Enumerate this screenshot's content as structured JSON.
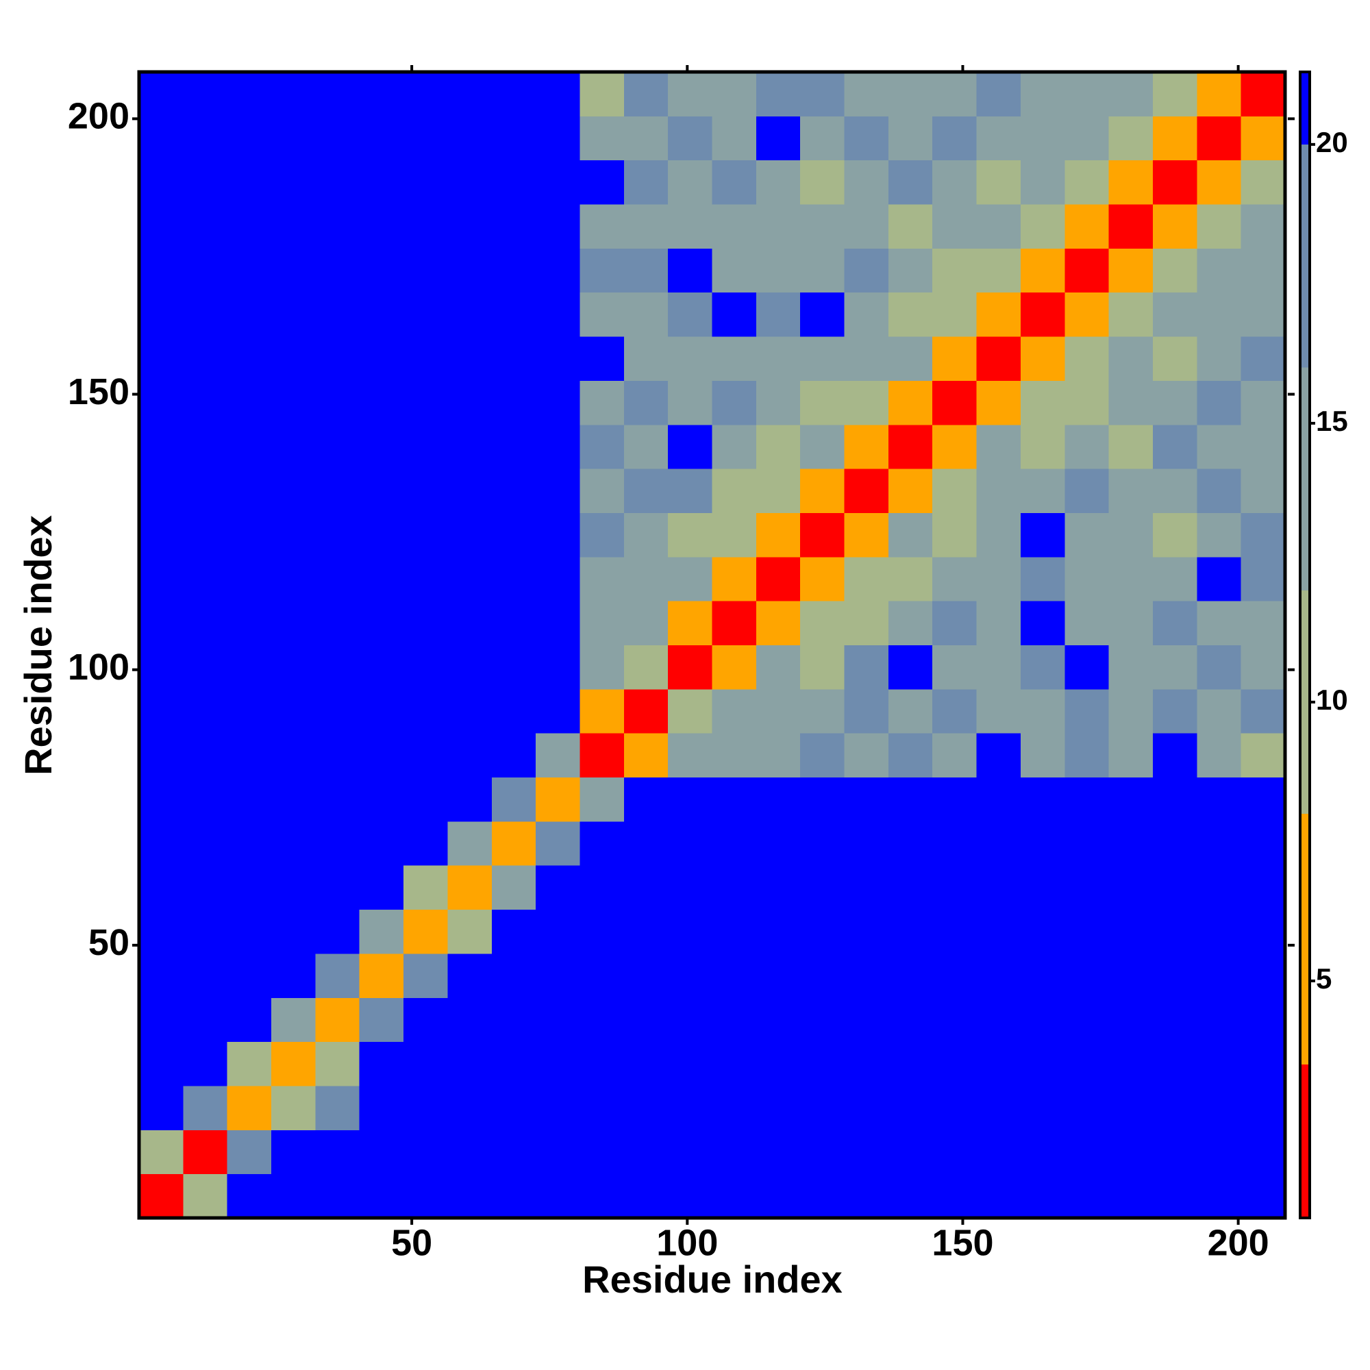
{
  "chart_data": {
    "type": "heatmap",
    "xlabel": "Residue index",
    "ylabel": "Residue index",
    "xlim": [
      0.5,
      208.5
    ],
    "ylim": [
      0.5,
      208.5
    ],
    "xticks": [
      50,
      100,
      150,
      200
    ],
    "yticks": [
      50,
      100,
      150,
      200
    ],
    "xbins": [
      0.5,
      8.5,
      16.5,
      24.5,
      32.5,
      40.5,
      48.5,
      56.5,
      64.5,
      72.5,
      80.5,
      88.5,
      96.5,
      104.5,
      112.5,
      120.5,
      128.5,
      136.5,
      144.5,
      152.5,
      160.5,
      168.5,
      176.5,
      184.5,
      192.5,
      200.5,
      208.5
    ],
    "ybins": [
      0.5,
      8.5,
      16.5,
      24.5,
      32.5,
      40.5,
      48.5,
      56.5,
      64.5,
      72.5,
      80.5,
      88.5,
      96.5,
      104.5,
      112.5,
      120.5,
      128.5,
      136.5,
      144.5,
      152.5,
      160.5,
      168.5,
      176.5,
      184.5,
      192.5,
      200.5,
      208.5
    ],
    "values": [
      [
        3,
        12,
        21,
        21,
        21,
        21,
        21,
        21,
        21,
        21,
        21,
        21,
        21,
        21,
        21,
        21,
        21,
        21,
        21,
        21,
        21,
        21,
        21,
        21,
        21,
        21
      ],
      [
        12,
        3,
        17,
        21,
        21,
        21,
        21,
        21,
        21,
        21,
        21,
        21,
        21,
        21,
        21,
        21,
        21,
        21,
        21,
        21,
        21,
        21,
        21,
        21,
        21,
        21
      ],
      [
        21,
        17,
        4,
        12,
        19,
        21,
        21,
        21,
        21,
        21,
        21,
        21,
        21,
        21,
        21,
        21,
        21,
        21,
        21,
        21,
        21,
        21,
        21,
        21,
        21,
        21
      ],
      [
        21,
        21,
        12,
        4,
        12,
        21,
        21,
        21,
        21,
        21,
        21,
        21,
        21,
        21,
        21,
        21,
        21,
        21,
        21,
        21,
        21,
        21,
        21,
        21,
        21,
        21
      ],
      [
        21,
        21,
        21,
        14,
        4,
        18,
        21,
        21,
        21,
        21,
        21,
        21,
        21,
        21,
        21,
        21,
        21,
        21,
        21,
        21,
        21,
        21,
        21,
        21,
        21,
        21
      ],
      [
        21,
        21,
        21,
        21,
        18,
        4,
        17,
        21,
        21,
        21,
        21,
        21,
        21,
        21,
        21,
        21,
        21,
        21,
        21,
        21,
        21,
        21,
        21,
        21,
        21,
        21
      ],
      [
        21,
        21,
        21,
        21,
        21,
        15,
        4,
        11,
        21,
        21,
        21,
        21,
        21,
        21,
        21,
        21,
        21,
        21,
        21,
        21,
        21,
        21,
        21,
        21,
        21,
        21
      ],
      [
        21,
        21,
        21,
        21,
        21,
        21,
        11,
        4,
        14,
        21,
        21,
        21,
        21,
        21,
        21,
        21,
        21,
        21,
        21,
        21,
        21,
        21,
        21,
        21,
        21,
        21
      ],
      [
        21,
        21,
        21,
        21,
        21,
        21,
        21,
        16,
        4,
        18,
        21,
        21,
        21,
        21,
        21,
        21,
        21,
        21,
        21,
        21,
        21,
        21,
        21,
        21,
        21,
        21
      ],
      [
        21,
        21,
        21,
        21,
        21,
        21,
        21,
        21,
        18,
        4,
        16,
        21,
        21,
        21,
        21,
        21,
        21,
        21,
        21,
        21,
        21,
        21,
        21,
        21,
        21,
        21
      ],
      [
        21,
        21,
        21,
        21,
        21,
        21,
        21,
        21,
        21,
        16,
        3,
        8,
        13,
        16,
        15,
        18,
        14,
        17,
        15,
        21,
        16,
        17,
        15,
        21,
        16,
        12
      ],
      [
        21,
        21,
        21,
        21,
        21,
        21,
        21,
        21,
        21,
        21,
        8,
        3,
        9,
        13,
        16,
        14,
        17,
        15,
        19,
        16,
        15,
        18,
        14,
        17,
        15,
        18
      ],
      [
        21,
        21,
        21,
        21,
        21,
        21,
        21,
        21,
        21,
        21,
        13,
        9,
        3,
        8,
        14,
        10,
        17,
        21,
        16,
        15,
        17,
        21,
        16,
        15,
        18,
        16
      ],
      [
        21,
        21,
        21,
        21,
        21,
        21,
        21,
        21,
        21,
        21,
        16,
        13,
        8,
        3,
        7,
        12,
        9,
        15,
        17,
        14,
        21,
        16,
        15,
        19,
        16,
        15
      ],
      [
        21,
        21,
        21,
        21,
        21,
        21,
        21,
        21,
        21,
        21,
        15,
        16,
        14,
        7,
        3,
        8,
        12,
        10,
        16,
        14,
        17,
        15,
        14,
        16,
        21,
        17
      ],
      [
        21,
        21,
        21,
        21,
        21,
        21,
        21,
        21,
        21,
        21,
        18,
        14,
        10,
        12,
        8,
        3,
        7,
        13,
        9,
        15,
        21,
        16,
        14,
        12,
        16,
        18
      ],
      [
        21,
        21,
        21,
        21,
        21,
        21,
        21,
        21,
        21,
        21,
        14,
        17,
        17,
        9,
        12,
        7,
        3,
        8,
        12,
        16,
        14,
        17,
        15,
        16,
        17,
        15
      ],
      [
        21,
        21,
        21,
        21,
        21,
        21,
        21,
        21,
        21,
        21,
        17,
        15,
        21,
        15,
        10,
        13,
        8,
        3,
        7,
        13,
        11,
        15,
        12,
        17,
        15,
        14
      ],
      [
        21,
        21,
        21,
        21,
        21,
        21,
        21,
        21,
        21,
        21,
        15,
        19,
        16,
        17,
        16,
        9,
        12,
        7,
        3,
        8,
        12,
        9,
        16,
        14,
        17,
        16
      ],
      [
        21,
        21,
        21,
        21,
        21,
        21,
        21,
        21,
        21,
        21,
        21,
        16,
        15,
        14,
        14,
        15,
        16,
        13,
        8,
        3,
        7,
        12,
        16,
        11,
        15,
        17
      ],
      [
        21,
        21,
        21,
        21,
        21,
        21,
        21,
        21,
        21,
        21,
        16,
        15,
        17,
        21,
        17,
        21,
        14,
        11,
        12,
        7,
        3,
        8,
        10,
        14,
        16,
        13
      ],
      [
        21,
        21,
        21,
        21,
        21,
        21,
        21,
        21,
        21,
        21,
        17,
        18,
        21,
        16,
        15,
        16,
        17,
        15,
        9,
        12,
        8,
        3,
        7,
        12,
        15,
        14
      ],
      [
        21,
        21,
        21,
        21,
        21,
        21,
        21,
        21,
        21,
        21,
        15,
        14,
        16,
        15,
        14,
        14,
        15,
        12,
        16,
        16,
        10,
        7,
        3,
        8,
        11,
        13
      ],
      [
        21,
        21,
        21,
        21,
        21,
        21,
        21,
        21,
        21,
        21,
        21,
        17,
        15,
        19,
        16,
        12,
        16,
        17,
        14,
        11,
        14,
        12,
        8,
        3,
        7,
        12
      ],
      [
        21,
        21,
        21,
        21,
        21,
        21,
        21,
        21,
        21,
        21,
        16,
        15,
        18,
        16,
        21,
        16,
        17,
        15,
        17,
        15,
        16,
        15,
        11,
        7,
        3,
        8
      ],
      [
        21,
        21,
        21,
        21,
        21,
        21,
        21,
        21,
        21,
        21,
        12,
        18,
        16,
        15,
        17,
        18,
        15,
        14,
        16,
        17,
        13,
        14,
        13,
        12,
        8,
        3
      ]
    ],
    "zlim": [
      0.75,
      21.3
    ],
    "zticks": [
      5,
      10,
      15,
      20
    ],
    "colorbands": [
      {
        "min": 0.75,
        "max": 3.5,
        "color": "#ff0000"
      },
      {
        "min": 3.5,
        "max": 8,
        "color": "#ffa500"
      },
      {
        "min": 8,
        "max": 12,
        "color": "#a7b78a"
      },
      {
        "min": 12,
        "max": 16,
        "color": "#8aa2a4"
      },
      {
        "min": 16,
        "max": 20,
        "color": "#6f8cae"
      },
      {
        "min": 20,
        "max": 21.3,
        "color": "#0000ff"
      }
    ]
  }
}
